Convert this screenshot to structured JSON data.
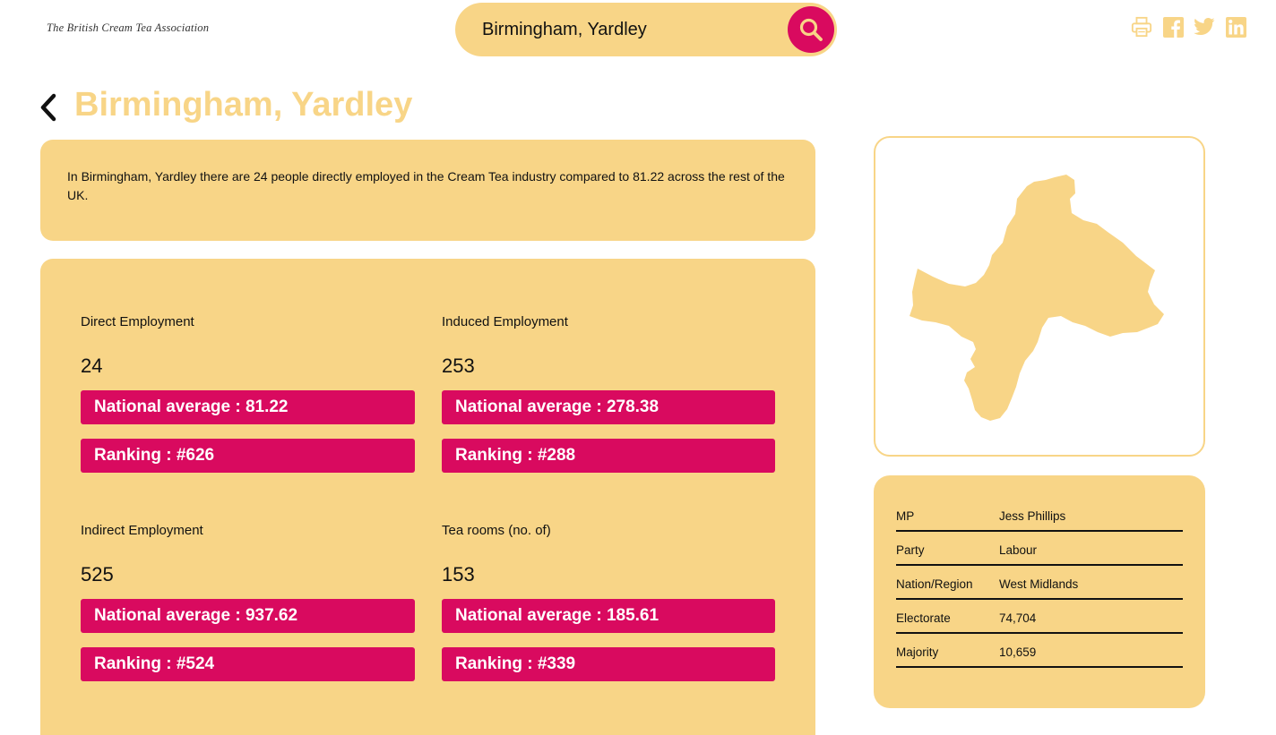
{
  "header": {
    "logo_text": "The British Cream Tea Association",
    "search_value": "Birmingham, Yardley",
    "share_icons": [
      "print-icon",
      "facebook-icon",
      "twitter-icon",
      "linkedin-icon"
    ]
  },
  "page": {
    "title": "Birmingham, Yardley"
  },
  "intro": {
    "text": "In Birmingham, Yardley there are 24 people directly employed in the Cream Tea industry compared to 81.22 across the rest of the UK."
  },
  "stats": [
    {
      "label": "Direct Employment",
      "value": "24",
      "average": "National average : 81.22",
      "ranking": "Ranking : #626"
    },
    {
      "label": "Induced Employment",
      "value": "253",
      "average": "National average : 278.38",
      "ranking": "Ranking : #288"
    },
    {
      "label": "Indirect Employment",
      "value": "525",
      "average": "National average : 937.62",
      "ranking": "Ranking : #524"
    },
    {
      "label": "Tea rooms (no. of)",
      "value": "153",
      "average": "National average : 185.61",
      "ranking": "Ranking : #339"
    }
  ],
  "constituency": [
    {
      "key": "MP",
      "value": "Jess Phillips"
    },
    {
      "key": "Party",
      "value": "Labour"
    },
    {
      "key": "Nation/Region",
      "value": "West Midlands"
    },
    {
      "key": "Electorate",
      "value": "74,704"
    },
    {
      "key": "Majority",
      "value": "10,659"
    }
  ],
  "colors": {
    "accent": "#f8d587",
    "highlight": "#d90a5f"
  }
}
